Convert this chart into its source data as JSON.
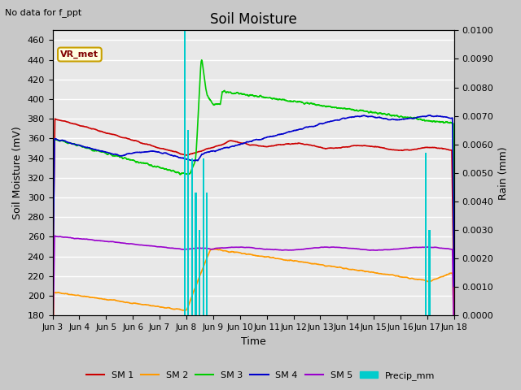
{
  "title": "Soil Moisture",
  "subtitle": "No data for f_ppt",
  "ylabel_left": "Soil Moisture (mV)",
  "ylabel_right": "Rain (mm)",
  "xlabel": "Time",
  "ylim_left": [
    180,
    470
  ],
  "ylim_right": [
    0.0,
    0.01
  ],
  "yticks_left": [
    180,
    200,
    220,
    240,
    260,
    280,
    300,
    320,
    340,
    360,
    380,
    400,
    420,
    440,
    460
  ],
  "yticks_right": [
    0.0,
    0.001,
    0.002,
    0.003,
    0.004,
    0.005,
    0.006,
    0.007,
    0.008,
    0.009,
    0.01
  ],
  "xtick_labels": [
    "Jun 3",
    "Jun 4",
    "Jun 5",
    "Jun 6",
    "Jun 7",
    "Jun 8",
    "Jun 9",
    "Jun 10",
    "Jun 11",
    "Jun 12",
    "Jun 13",
    "Jun 14",
    "Jun 15",
    "Jun 16",
    "Jun 17",
    "Jun 18"
  ],
  "xtick_positions": [
    3,
    4,
    5,
    6,
    7,
    8,
    9,
    10,
    11,
    12,
    13,
    14,
    15,
    16,
    17,
    18
  ],
  "background_color": "#e8e8e8",
  "grid_color": "#ffffff",
  "fig_facecolor": "#c8c8c8",
  "vr_met_box_color": "#c8a000",
  "vr_met_text_color": "#800000",
  "colors": {
    "SM1": "#cc0000",
    "SM2": "#ff9900",
    "SM3": "#00cc00",
    "SM4": "#0000cc",
    "SM5": "#9900cc",
    "Precip": "#00cccc"
  },
  "precip_bars": [
    [
      7.93,
      0.01
    ],
    [
      8.07,
      0.0065
    ],
    [
      8.21,
      0.0055
    ],
    [
      8.35,
      0.0043
    ],
    [
      8.49,
      0.003
    ],
    [
      8.63,
      0.0055
    ],
    [
      8.77,
      0.0043
    ],
    [
      16.93,
      0.0057
    ],
    [
      17.07,
      0.003
    ]
  ]
}
